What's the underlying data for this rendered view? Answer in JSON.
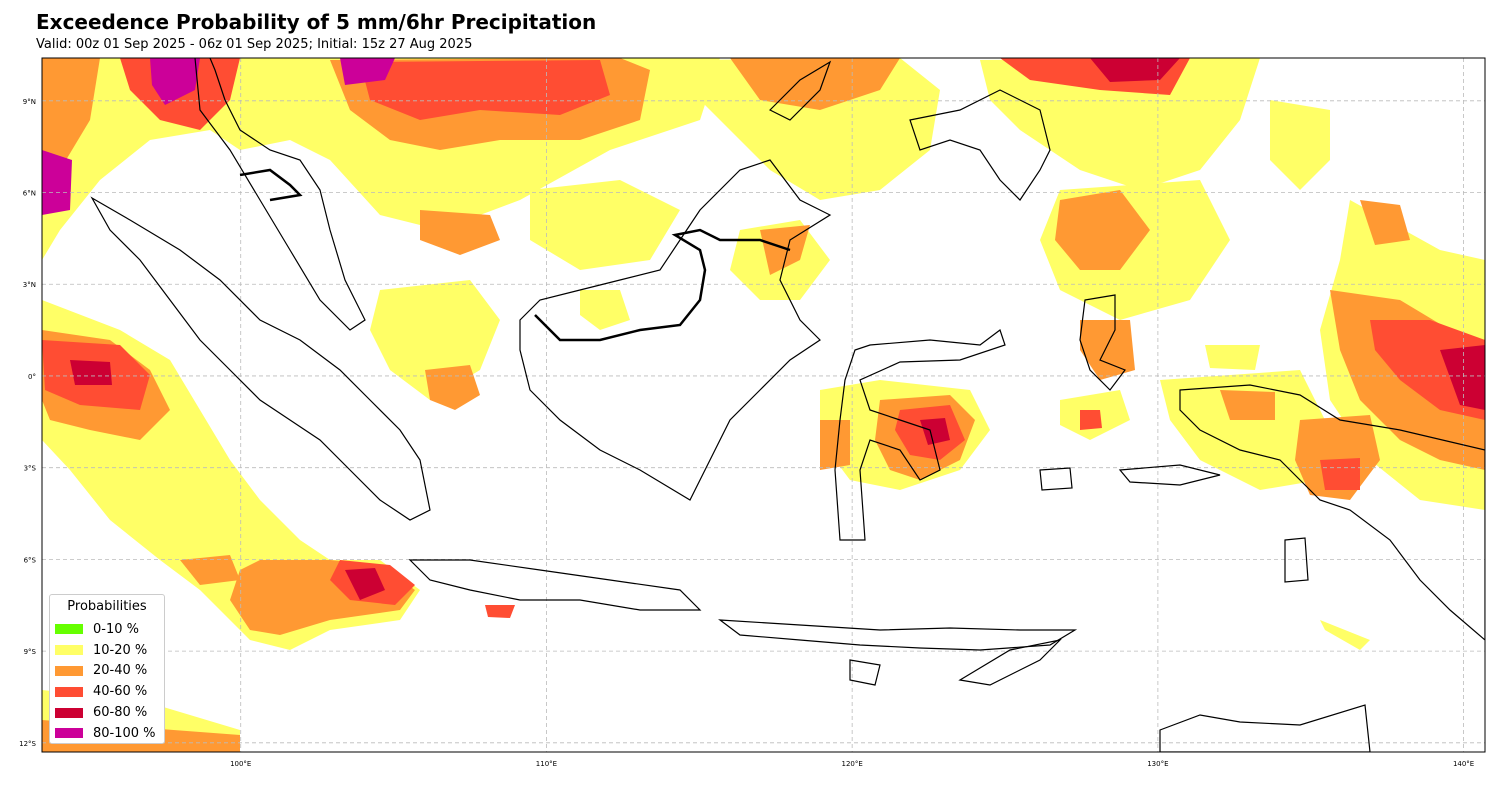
{
  "title": "Exceedence Probability of 5 mm/6hr Precipitation",
  "subtitle": "Valid: 00z 01 Sep 2025 - 06z 01 Sep 2025; Initial: 15z 27 Aug 2025",
  "map": {
    "lon_range": [
      93.5,
      140.7
    ],
    "lat_range": [
      -12.3,
      10.4
    ],
    "gridlines": true,
    "lon_ticks": [
      {
        "value": 100,
        "label": "100°E"
      },
      {
        "value": 110,
        "label": "110°E"
      },
      {
        "value": 120,
        "label": "120°E"
      },
      {
        "value": 130,
        "label": "130°E"
      },
      {
        "value": 140,
        "label": "140°E"
      }
    ],
    "lat_ticks": [
      {
        "value": 9,
        "label": "9°N"
      },
      {
        "value": 6,
        "label": "6°N"
      },
      {
        "value": 3,
        "label": "3°N"
      },
      {
        "value": 0,
        "label": "0°"
      },
      {
        "value": -3,
        "label": "3°S"
      },
      {
        "value": -6,
        "label": "6°S"
      },
      {
        "value": -9,
        "label": "9°S"
      },
      {
        "value": -12,
        "label": "12°S"
      }
    ]
  },
  "legend": {
    "title": "Probabilities",
    "placement": "lower-left",
    "items": [
      {
        "label": "0-10 %",
        "color": "#66ff00"
      },
      {
        "label": "10-20 %",
        "color": "#ffff66"
      },
      {
        "label": "20-40 %",
        "color": "#ff9933"
      },
      {
        "label": "40-60 %",
        "color": "#ff4d33"
      },
      {
        "label": "60-80 %",
        "color": "#cc0033"
      },
      {
        "label": "80-100 %",
        "color": "#cc0099"
      }
    ]
  }
}
